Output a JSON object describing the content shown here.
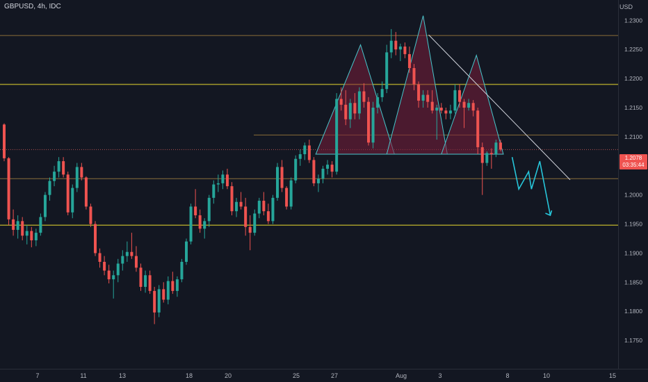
{
  "header": {
    "symbol": "GBPUSD, 4h, IDC",
    "currency": "USD"
  },
  "price_axis": {
    "min": 1.17,
    "max": 1.2335,
    "ticks": [
      "1.2300",
      "1.2250",
      "1.2200",
      "1.2150",
      "1.2100",
      "1.2050",
      "1.2000",
      "1.1950",
      "1.1900",
      "1.1850",
      "1.1800",
      "1.1750"
    ]
  },
  "current_price": {
    "price": "1.2078",
    "countdown": "03:35:44"
  },
  "time_axis": {
    "labels": [
      "7",
      "11",
      "13",
      "18",
      "20",
      "25",
      "27",
      "Aug",
      "3",
      "8",
      "10",
      "15"
    ]
  },
  "colors": {
    "background": "#131722",
    "bull": "#26a69a",
    "bear": "#ef5350",
    "hline_gold": "#a39a2a",
    "hline_thin": "#8a6e3a",
    "pattern": "#48c6cc",
    "pattern_fill": "#7a1d3a",
    "trendline": "#d1d4dc",
    "arrow": "#27c6da"
  },
  "chart_data": {
    "type": "candlestick",
    "symbol": "GBPUSD",
    "interval": "4h",
    "price_range": [
      1.17,
      1.2335
    ],
    "horizontal_levels": [
      1.2274,
      1.219,
      1.2103,
      1.2078,
      1.2028,
      1.1948
    ],
    "candles": [
      [
        1.2121,
        1.2123,
        1.2058,
        1.2063
      ],
      [
        1.2063,
        1.2065,
        1.1948,
        1.1958
      ],
      [
        1.1958,
        1.1975,
        1.193,
        1.194
      ],
      [
        1.194,
        1.1965,
        1.1925,
        1.1955
      ],
      [
        1.1955,
        1.1962,
        1.1922,
        1.193
      ],
      [
        1.193,
        1.1948,
        1.1915,
        1.1938
      ],
      [
        1.1938,
        1.1945,
        1.191,
        1.1922
      ],
      [
        1.1922,
        1.1942,
        1.1912,
        1.1935
      ],
      [
        1.1935,
        1.1968,
        1.193,
        1.1962
      ],
      [
        1.1962,
        1.2005,
        1.1955,
        1.2
      ],
      [
        1.2,
        1.203,
        1.199,
        1.2024
      ],
      [
        1.2024,
        1.205,
        1.2015,
        1.204
      ],
      [
        1.204,
        1.2065,
        1.203,
        1.2058
      ],
      [
        1.2058,
        1.2065,
        1.203,
        1.2035
      ],
      [
        1.2035,
        1.204,
        1.1965,
        1.197
      ],
      [
        1.197,
        1.2018,
        1.196,
        1.2012
      ],
      [
        1.2012,
        1.2055,
        1.2005,
        1.2048
      ],
      [
        1.2048,
        1.2055,
        1.2025,
        1.203
      ],
      [
        1.203,
        1.2032,
        1.1975,
        1.198
      ],
      [
        1.198,
        1.1985,
        1.1945,
        1.195
      ],
      [
        1.195,
        1.1955,
        1.1895,
        1.19
      ],
      [
        1.19,
        1.1908,
        1.1875,
        1.1885
      ],
      [
        1.1885,
        1.1895,
        1.1862,
        1.187
      ],
      [
        1.187,
        1.188,
        1.1848,
        1.1855
      ],
      [
        1.1855,
        1.187,
        1.1822,
        1.1862
      ],
      [
        1.1862,
        1.189,
        1.185,
        1.1882
      ],
      [
        1.1882,
        1.1905,
        1.187,
        1.1895
      ],
      [
        1.1895,
        1.192,
        1.1885,
        1.1902
      ],
      [
        1.1902,
        1.1935,
        1.189,
        1.1895
      ],
      [
        1.1895,
        1.1912,
        1.1868,
        1.1875
      ],
      [
        1.1875,
        1.1882,
        1.1835,
        1.1842
      ],
      [
        1.1842,
        1.187,
        1.1832,
        1.1862
      ],
      [
        1.1862,
        1.187,
        1.183,
        1.1835
      ],
      [
        1.1835,
        1.1842,
        1.1778,
        1.1798
      ],
      [
        1.1798,
        1.1845,
        1.179,
        1.1838
      ],
      [
        1.1838,
        1.185,
        1.1815,
        1.182
      ],
      [
        1.182,
        1.186,
        1.1812,
        1.1852
      ],
      [
        1.1852,
        1.1868,
        1.183,
        1.1835
      ],
      [
        1.1835,
        1.186,
        1.1825,
        1.1855
      ],
      [
        1.1855,
        1.189,
        1.185,
        1.1885
      ],
      [
        1.1885,
        1.1925,
        1.188,
        1.192
      ],
      [
        1.192,
        1.1985,
        1.1915,
        1.198
      ],
      [
        1.198,
        1.201,
        1.196,
        1.1965
      ],
      [
        1.1965,
        1.1975,
        1.1935,
        1.1942
      ],
      [
        1.1942,
        1.196,
        1.1925,
        1.1955
      ],
      [
        1.1955,
        1.2,
        1.1945,
        1.1995
      ],
      [
        1.1995,
        1.2025,
        1.1985,
        1.2018
      ],
      [
        1.2018,
        1.2035,
        1.2005,
        1.202
      ],
      [
        1.202,
        1.2042,
        1.201,
        1.2035
      ],
      [
        1.2035,
        1.2045,
        1.201,
        1.2015
      ],
      [
        1.2015,
        1.2022,
        1.1965,
        1.1972
      ],
      [
        1.1972,
        1.1995,
        1.1962,
        1.1988
      ],
      [
        1.1988,
        1.2005,
        1.1975,
        1.198
      ],
      [
        1.198,
        1.1995,
        1.193,
        1.1945
      ],
      [
        1.1945,
        1.1965,
        1.1905,
        1.1935
      ],
      [
        1.1935,
        1.1975,
        1.193,
        1.1968
      ],
      [
        1.1968,
        1.1995,
        1.196,
        1.199
      ],
      [
        1.199,
        1.2005,
        1.1965,
        1.1972
      ],
      [
        1.1972,
        1.1985,
        1.195,
        1.1955
      ],
      [
        1.1955,
        1.2,
        1.195,
        1.1995
      ],
      [
        1.1995,
        1.2055,
        1.199,
        1.2048
      ],
      [
        1.2048,
        1.206,
        1.2005,
        1.2012
      ],
      [
        1.2012,
        1.2015,
        1.1975,
        1.198
      ],
      [
        1.198,
        1.203,
        1.1975,
        1.2025
      ],
      [
        1.2025,
        1.2068,
        1.202,
        1.2062
      ],
      [
        1.2062,
        1.2078,
        1.205,
        1.207
      ],
      [
        1.207,
        1.209,
        1.206,
        1.2085
      ],
      [
        1.2085,
        1.2095,
        1.2055,
        1.206
      ],
      [
        1.206,
        1.2065,
        1.2015,
        1.202
      ],
      [
        1.202,
        1.2035,
        1.2005,
        1.2028
      ],
      [
        1.2028,
        1.205,
        1.202,
        1.2045
      ],
      [
        1.2045,
        1.206,
        1.2035,
        1.2052
      ],
      [
        1.2052,
        1.2058,
        1.203,
        1.204
      ],
      [
        1.204,
        1.2175,
        1.2035,
        1.2165
      ],
      [
        1.2165,
        1.2185,
        1.2145,
        1.2155
      ],
      [
        1.2155,
        1.218,
        1.212,
        1.213
      ],
      [
        1.213,
        1.2165,
        1.2115,
        1.2158
      ],
      [
        1.2158,
        1.2175,
        1.213,
        1.214
      ],
      [
        1.214,
        1.2185,
        1.213,
        1.2178
      ],
      [
        1.2178,
        1.2192,
        1.215,
        1.216
      ],
      [
        1.216,
        1.2168,
        1.2085,
        1.209
      ],
      [
        1.209,
        1.216,
        1.208,
        1.215
      ],
      [
        1.215,
        1.2175,
        1.214,
        1.2168
      ],
      [
        1.2168,
        1.2195,
        1.216,
        1.2182
      ],
      [
        1.2182,
        1.2258,
        1.2175,
        1.2245
      ],
      [
        1.2245,
        1.2285,
        1.2235,
        1.2265
      ],
      [
        1.2265,
        1.228,
        1.224,
        1.225
      ],
      [
        1.225,
        1.226,
        1.223,
        1.2255
      ],
      [
        1.2255,
        1.2262,
        1.2235,
        1.2242
      ],
      [
        1.2242,
        1.2255,
        1.221,
        1.2218
      ],
      [
        1.2218,
        1.2225,
        1.218,
        1.219
      ],
      [
        1.219,
        1.2195,
        1.215,
        1.2162
      ],
      [
        1.2162,
        1.218,
        1.215,
        1.2172
      ],
      [
        1.2172,
        1.218,
        1.215,
        1.216
      ],
      [
        1.216,
        1.218,
        1.214,
        1.2145
      ],
      [
        1.2145,
        1.2155,
        1.2095,
        1.215
      ],
      [
        1.215,
        1.2158,
        1.214,
        1.2145
      ],
      [
        1.2145,
        1.215,
        1.213,
        1.214
      ],
      [
        1.214,
        1.2155,
        1.213,
        1.2145
      ],
      [
        1.2145,
        1.219,
        1.214,
        1.218
      ],
      [
        1.218,
        1.219,
        1.215,
        1.216
      ],
      [
        1.216,
        1.2165,
        1.2115,
        1.215
      ],
      [
        1.215,
        1.2165,
        1.2145,
        1.2158
      ],
      [
        1.2158,
        1.2163,
        1.2135,
        1.2145
      ],
      [
        1.2145,
        1.215,
        1.207,
        1.2082
      ],
      [
        1.2082,
        1.209,
        1.2,
        1.2055
      ],
      [
        1.2055,
        1.2075,
        1.205,
        1.2072
      ],
      [
        1.2072,
        1.208,
        1.2045,
        1.207
      ],
      [
        1.207,
        1.2095,
        1.2065,
        1.209
      ],
      [
        1.209,
        1.2095,
        1.2075,
        1.2078
      ]
    ],
    "head_and_shoulders": {
      "left_shoulder_peak": 1.2258,
      "head_peak": 1.2308,
      "right_shoulder_peak": 1.224,
      "neckline": 1.207
    },
    "descending_trendline": {
      "from": 1.2275,
      "to": 1.2026
    },
    "projection": [
      1.2065,
      1.201,
      1.204,
      1.201,
      1.2058,
      1.1965
    ]
  }
}
